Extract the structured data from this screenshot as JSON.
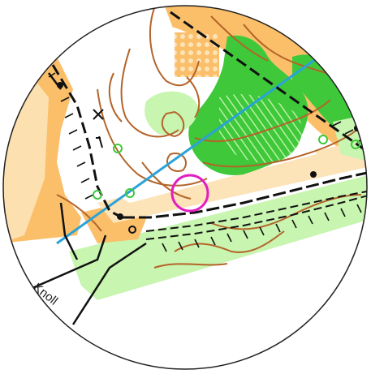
{
  "map": {
    "place_label": "Knoll",
    "colors": {
      "open_land": "#fbbf6a",
      "rough_open": "#fde3b8",
      "vegetation_dark": "#3ec83a",
      "vegetation_light": "#c8f5b0",
      "contour": "#b4642a",
      "power_line": "#2aa3d8",
      "road": "#111111",
      "control_circle": "#e11fbf",
      "water_feature": "#2aa3d8",
      "background": "#ffffff"
    },
    "symbols": {
      "control_circle": "control-circle-icon",
      "cross": "cross-icon",
      "boulders": "boulder-icon",
      "green_rings": "small-knoll-icon",
      "dots": "dot-icon"
    }
  }
}
